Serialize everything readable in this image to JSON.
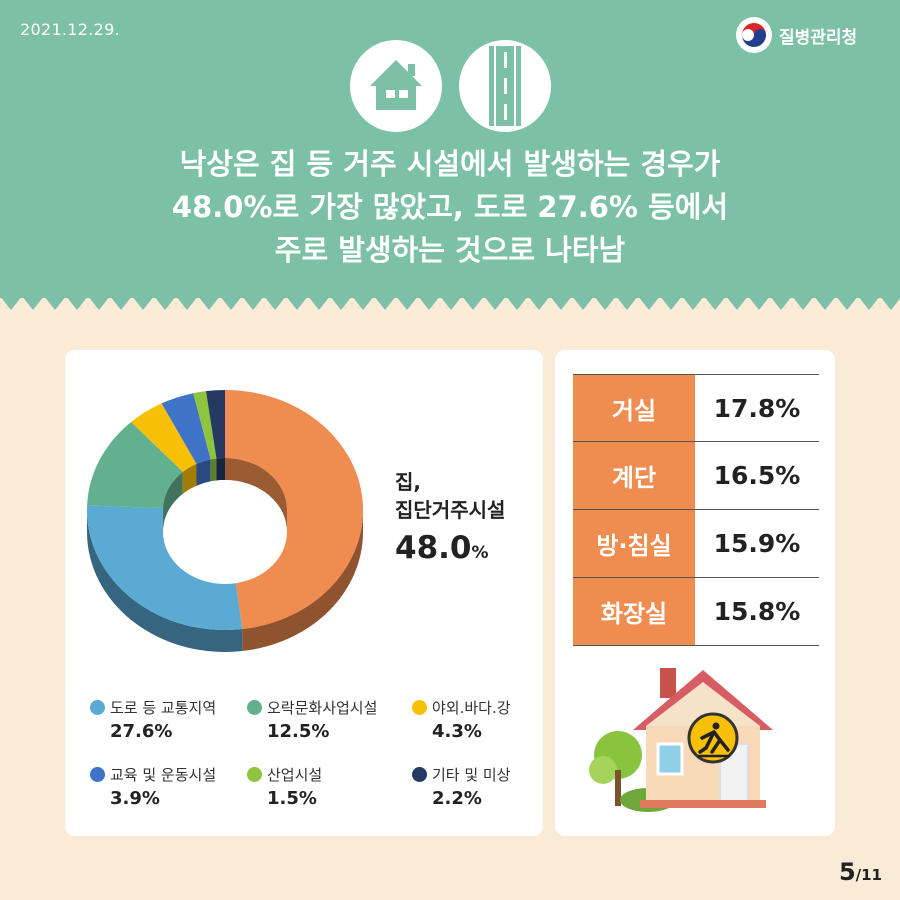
{
  "date": "2021.12.29.",
  "agency": "질병관리청",
  "headline": {
    "line1": "낙상은 집 등 거주 시설에서 발생하는 경우가",
    "line2": "48.0%로 가장 많았고, 도로 27.6% 등에서",
    "line3": "주로 발생하는 것으로 나타남"
  },
  "donut_callout": {
    "label_line1": "집,",
    "label_line2": "집단거주시설",
    "value": "48.0",
    "unit": "%"
  },
  "chart_data": {
    "type": "pie",
    "categories": [
      "집, 집단거주시설",
      "도로 등 교통지역",
      "오락문화사업시설",
      "야외.바다.강",
      "교육 및 운동시설",
      "산업시설",
      "기타 및 미상"
    ],
    "values": [
      48.0,
      27.6,
      12.5,
      4.3,
      3.9,
      1.5,
      2.2
    ],
    "unit": "%",
    "colors": [
      "#ef8c4f",
      "#5aaad3",
      "#63b08e",
      "#f8c005",
      "#3f73c8",
      "#8fc43f",
      "#243a62"
    ],
    "style": "3d-donut"
  },
  "legend": [
    {
      "name": "도로 등 교통지역",
      "value": "27.6%",
      "color": "#5aaad3"
    },
    {
      "name": "오락문화사업시설",
      "value": "12.5%",
      "color": "#63b08e"
    },
    {
      "name": "야외.바다.강",
      "value": "4.3%",
      "color": "#f8c005"
    },
    {
      "name": "교육 및 운동시설",
      "value": "3.9%",
      "color": "#3f73c8"
    },
    {
      "name": "산업시설",
      "value": "1.5%",
      "color": "#8fc43f"
    },
    {
      "name": "기타 및 미상",
      "value": "2.2%",
      "color": "#243a62"
    }
  ],
  "home_table": [
    {
      "place": "거실",
      "value": "17.8%"
    },
    {
      "place": "계단",
      "value": "16.5%"
    },
    {
      "place": "방·침실",
      "value": "15.9%"
    },
    {
      "place": "화장실",
      "value": "15.8%"
    }
  ],
  "pagination": {
    "current": "5",
    "total": "/11"
  },
  "icons": [
    "house-icon",
    "road-icon",
    "agency-logo-icon",
    "fall-warning-house-illustration"
  ]
}
